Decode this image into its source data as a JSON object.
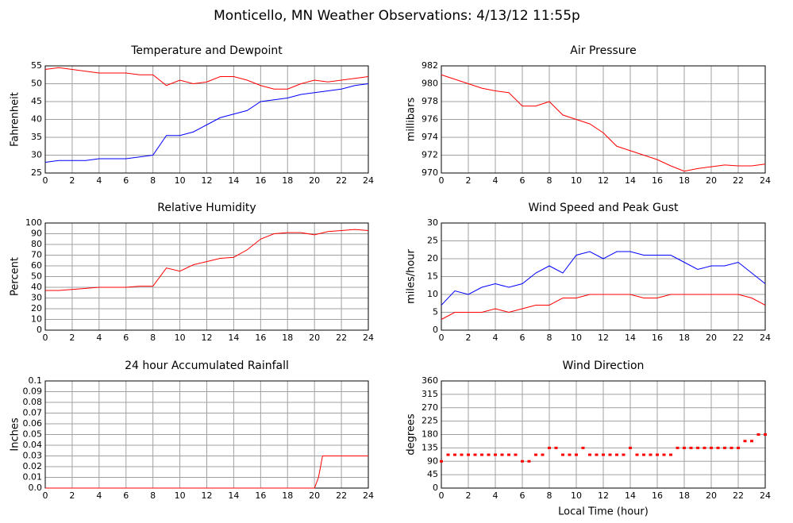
{
  "title": "Monticello, MN Weather Observations: 4/13/12 11:55p",
  "chart_data": [
    {
      "type": "line",
      "title": "Temperature and Dewpoint",
      "ylabel": "Fahrenheit",
      "x": [
        0,
        1,
        2,
        3,
        4,
        5,
        6,
        7,
        8,
        9,
        10,
        11,
        12,
        13,
        14,
        15,
        16,
        17,
        18,
        19,
        20,
        21,
        22,
        23,
        24
      ],
      "series": [
        {
          "color": "#ff0000",
          "values": [
            54,
            54.5,
            54,
            53.5,
            53,
            53,
            53,
            52.5,
            52.5,
            49.5,
            51,
            50,
            50.5,
            52,
            52,
            51,
            49.5,
            48.5,
            48.5,
            50,
            51,
            50.5,
            51,
            51.5,
            52
          ]
        },
        {
          "color": "#0000ff",
          "values": [
            28,
            28.5,
            28.5,
            28.5,
            29,
            29,
            29,
            29.5,
            30,
            35.5,
            35.5,
            36.5,
            38.5,
            40.5,
            41.5,
            42.5,
            45,
            45.5,
            46,
            47,
            47.5,
            48,
            48.5,
            49.5,
            50
          ]
        }
      ],
      "xlim": [
        0,
        24
      ],
      "xticks": [
        0,
        2,
        4,
        6,
        8,
        10,
        12,
        14,
        16,
        18,
        20,
        22,
        24
      ],
      "ylim": [
        25,
        55
      ],
      "yticks": [
        25,
        30,
        35,
        40,
        45,
        50,
        55
      ],
      "grid": true
    },
    {
      "type": "line",
      "title": "Air Pressure",
      "ylabel": "millibars",
      "x": [
        0,
        1,
        2,
        3,
        4,
        5,
        6,
        7,
        8,
        9,
        10,
        11,
        12,
        13,
        14,
        15,
        16,
        17,
        18,
        19,
        20,
        21,
        22,
        23,
        24
      ],
      "series": [
        {
          "color": "#ff0000",
          "values": [
            981,
            980.5,
            980,
            979.5,
            979.2,
            979,
            977.5,
            977.5,
            978,
            976.5,
            976,
            975.5,
            974.5,
            973,
            972.5,
            972,
            971.5,
            970.8,
            970.2,
            970.5,
            970.7,
            970.9,
            970.8,
            970.8,
            971
          ]
        }
      ],
      "xlim": [
        0,
        24
      ],
      "xticks": [
        0,
        2,
        4,
        6,
        8,
        10,
        12,
        14,
        16,
        18,
        20,
        22,
        24
      ],
      "ylim": [
        970,
        982
      ],
      "yticks": [
        970,
        972,
        974,
        976,
        978,
        980,
        982
      ],
      "grid": true
    },
    {
      "type": "line",
      "title": "Relative Humidity",
      "ylabel": "Percent",
      "x": [
        0,
        1,
        2,
        3,
        4,
        5,
        6,
        7,
        8,
        9,
        10,
        11,
        12,
        13,
        14,
        15,
        16,
        17,
        18,
        19,
        20,
        21,
        22,
        23,
        24
      ],
      "series": [
        {
          "color": "#ff0000",
          "values": [
            37,
            37,
            38,
            39,
            40,
            40,
            40,
            41,
            41,
            58,
            55,
            61,
            64,
            67,
            68,
            75,
            85,
            90,
            91,
            91,
            89,
            92,
            93,
            94,
            93
          ]
        }
      ],
      "xlim": [
        0,
        24
      ],
      "xticks": [
        0,
        2,
        4,
        6,
        8,
        10,
        12,
        14,
        16,
        18,
        20,
        22,
        24
      ],
      "ylim": [
        0,
        100
      ],
      "yticks": [
        0,
        10,
        20,
        30,
        40,
        50,
        60,
        70,
        80,
        90,
        100
      ],
      "grid": true
    },
    {
      "type": "line",
      "title": "Wind Speed and Peak Gust",
      "ylabel": "miles/hour",
      "x": [
        0,
        1,
        2,
        3,
        4,
        5,
        6,
        7,
        8,
        9,
        10,
        11,
        12,
        13,
        14,
        15,
        16,
        17,
        18,
        19,
        20,
        21,
        22,
        23,
        24
      ],
      "series": [
        {
          "color": "#0000ff",
          "values": [
            7,
            11,
            10,
            12,
            13,
            12,
            13,
            16,
            18,
            16,
            21,
            22,
            20,
            22,
            22,
            21,
            21,
            21,
            19,
            17,
            18,
            18,
            19,
            16,
            13
          ]
        },
        {
          "color": "#ff0000",
          "values": [
            3,
            5,
            5,
            5,
            6,
            5,
            6,
            7,
            7,
            9,
            9,
            10,
            10,
            10,
            10,
            9,
            9,
            10,
            10,
            10,
            10,
            10,
            10,
            9,
            7
          ]
        }
      ],
      "xlim": [
        0,
        24
      ],
      "xticks": [
        0,
        2,
        4,
        6,
        8,
        10,
        12,
        14,
        16,
        18,
        20,
        22,
        24
      ],
      "ylim": [
        0,
        30
      ],
      "yticks": [
        0,
        5,
        10,
        15,
        20,
        25,
        30
      ],
      "grid": true
    },
    {
      "type": "line",
      "title": "24 hour Accumulated Rainfall",
      "ylabel": "Inches",
      "x": [
        0,
        20,
        20.3,
        20.6,
        24
      ],
      "series": [
        {
          "color": "#ff0000",
          "values": [
            0,
            0,
            0.01,
            0.03,
            0.03
          ]
        }
      ],
      "xlim": [
        0,
        24
      ],
      "xticks": [
        0,
        2,
        4,
        6,
        8,
        10,
        12,
        14,
        16,
        18,
        20,
        22,
        24
      ],
      "ylim": [
        0,
        0.1
      ],
      "yticks": [
        {
          "value": 0,
          "label": "0.0"
        },
        0.01,
        0.02,
        0.03,
        0.04,
        0.05,
        0.06,
        0.07,
        0.08,
        0.09,
        0.1
      ],
      "grid": true
    },
    {
      "type": "scatter",
      "title": "Wind Direction",
      "ylabel": "degrees",
      "xlabel": "Local Time (hour)",
      "x": [
        0,
        0.5,
        1,
        1.5,
        2,
        2.5,
        3,
        3.5,
        4,
        4.5,
        5,
        5.5,
        6,
        6.5,
        7,
        7.5,
        8,
        8.5,
        9,
        9.5,
        10,
        10.5,
        11,
        11.5,
        12,
        12.5,
        13,
        13.5,
        14,
        14.5,
        15,
        15.5,
        16,
        16.5,
        17,
        17.5,
        18,
        18.5,
        19,
        19.5,
        20,
        20.5,
        21,
        21.5,
        22,
        22.5,
        23,
        23.5,
        24
      ],
      "series": [
        {
          "color": "#ff0000",
          "values": [
            90,
            112,
            112,
            112,
            112,
            112,
            112,
            112,
            112,
            112,
            112,
            112,
            90,
            90,
            112,
            112,
            135,
            135,
            112,
            112,
            112,
            135,
            112,
            112,
            112,
            112,
            112,
            112,
            135,
            112,
            112,
            112,
            112,
            112,
            112,
            135,
            135,
            135,
            135,
            135,
            135,
            135,
            135,
            135,
            135,
            158,
            158,
            180,
            180
          ]
        }
      ],
      "xlim": [
        0,
        24
      ],
      "xticks": [
        0,
        2,
        4,
        6,
        8,
        10,
        12,
        14,
        16,
        18,
        20,
        22,
        24
      ],
      "ylim": [
        0,
        360
      ],
      "yticks": [
        0,
        45,
        90,
        135,
        180,
        225,
        270,
        315,
        360
      ],
      "grid": true
    }
  ]
}
